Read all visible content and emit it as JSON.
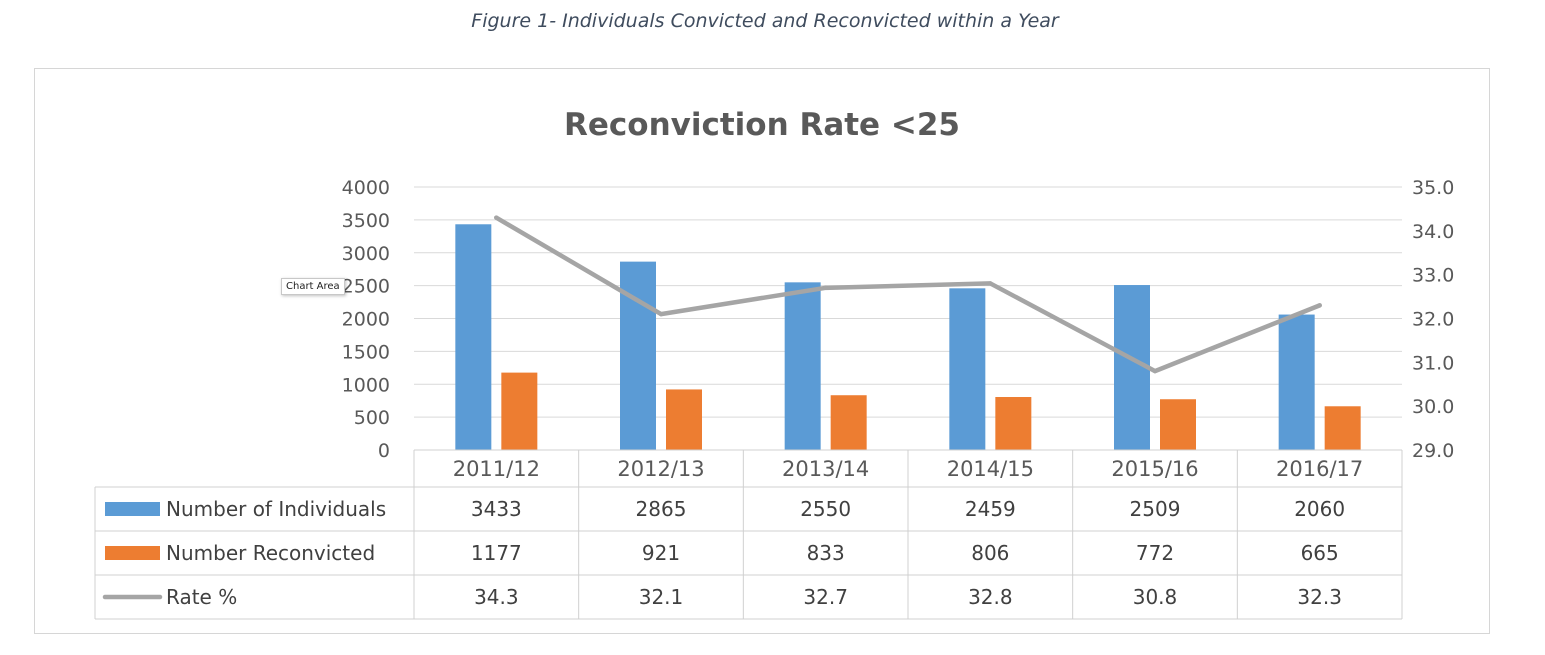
{
  "figure_caption": "Figure 1- Individuals Convicted and Reconvicted within a Year",
  "tooltip_text": "Chart Area",
  "chart_data": {
    "type": "bar",
    "title": "Reconviction Rate <25",
    "categories": [
      "2011/12",
      "2012/13",
      "2013/14",
      "2014/15",
      "2015/16",
      "2016/17"
    ],
    "series": [
      {
        "name": "Number of Individuals",
        "type": "bar",
        "axis": "left",
        "color": "#5b9bd5",
        "values": [
          3433,
          2865,
          2550,
          2459,
          2509,
          2060
        ]
      },
      {
        "name": "Number Reconvicted",
        "type": "bar",
        "axis": "left",
        "color": "#ed7d31",
        "values": [
          1177,
          921,
          833,
          806,
          772,
          665
        ]
      },
      {
        "name": "Rate %",
        "type": "line",
        "axis": "right",
        "color": "#a5a5a5",
        "values": [
          34.3,
          32.1,
          32.7,
          32.8,
          30.8,
          32.3
        ]
      }
    ],
    "y_left": {
      "min": 0,
      "max": 4000,
      "step": 500,
      "tick_labels": [
        "0",
        "500",
        "1000",
        "1500",
        "2000",
        "2500",
        "3000",
        "3500",
        "4000"
      ]
    },
    "y_right": {
      "min": 29.0,
      "max": 35.0,
      "step": 1.0,
      "tick_labels": [
        "29.0",
        "30.0",
        "31.0",
        "32.0",
        "33.0",
        "34.0",
        "35.0"
      ]
    },
    "value_labels": [
      [
        "3433",
        "2865",
        "2550",
        "2459",
        "2509",
        "2060"
      ],
      [
        "1177",
        "921",
        "833",
        "806",
        "772",
        "665"
      ],
      [
        "34.3",
        "32.1",
        "32.7",
        "32.8",
        "30.8",
        "32.3"
      ]
    ],
    "grid": true,
    "legend": "data-table"
  }
}
